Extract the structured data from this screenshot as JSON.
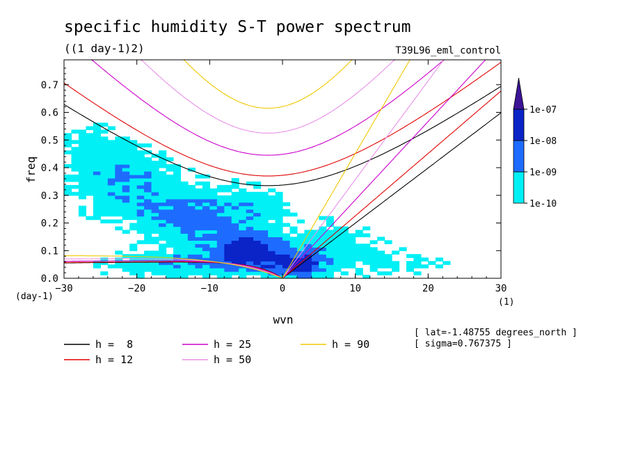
{
  "chart_data": {
    "type": "heatmap",
    "title": "specific humidity S-T power spectrum",
    "subtitle": "((1 day-1)2)",
    "run_label": "T39L96_eml_control",
    "xlabel": "wvn",
    "ylabel": "freq",
    "x_unit": "(1)",
    "y_unit": "(day-1)",
    "xlim": [
      -30,
      30
    ],
    "ylim": [
      0,
      0.79
    ],
    "x_ticks": [
      -30,
      -20,
      -10,
      0,
      10,
      20,
      30
    ],
    "x_tick_labels": [
      "−30",
      "−20",
      "−10",
      "0",
      "10",
      "20",
      "30"
    ],
    "y_ticks": [
      0,
      0.1,
      0.2,
      0.3,
      0.4,
      0.5,
      0.6,
      0.7
    ],
    "y_tick_labels": [
      "0.0",
      "0.1",
      "0.2",
      "0.3",
      "0.4",
      "0.5",
      "0.6",
      "0.7"
    ],
    "colorbar": {
      "levels": [
        "1e-10",
        "1e-09",
        "1e-08",
        "1e-07"
      ],
      "colors": [
        "#00f0f5",
        "#1e6cff",
        "#0a24c8",
        "#3c1496"
      ]
    },
    "series": [
      {
        "name": "h =  8",
        "color": "#000000",
        "equivalent_depth_m": 8
      },
      {
        "name": "h = 12",
        "color": "#e00000",
        "equivalent_depth_m": 12
      },
      {
        "name": "h = 25",
        "color": "#cc00cc",
        "equivalent_depth_m": 25
      },
      {
        "name": "h = 50",
        "color": "#e890e8",
        "equivalent_depth_m": 50
      },
      {
        "name": "h = 90",
        "color": "#f0c800",
        "equivalent_depth_m": 90
      }
    ],
    "blobs": [
      {
        "x": -5,
        "y": 0.1,
        "sx": 5,
        "sy": 0.07,
        "a": 3.2
      },
      {
        "x": -12,
        "y": 0.22,
        "sx": 8,
        "sy": 0.1,
        "a": 2.2
      },
      {
        "x": -22,
        "y": 0.36,
        "sx": 8,
        "sy": 0.14,
        "a": 1.8
      },
      {
        "x": 2,
        "y": 0.05,
        "sx": 4,
        "sy": 0.05,
        "a": 2.8
      },
      {
        "x": 7,
        "y": 0.12,
        "sx": 8,
        "sy": 0.1,
        "a": 1.3
      },
      {
        "x": 17,
        "y": 0.05,
        "sx": 8,
        "sy": 0.05,
        "a": 0.9
      },
      {
        "x": -27,
        "y": 0.5,
        "sx": 4,
        "sy": 0.07,
        "a": 1.0
      },
      {
        "x": -3,
        "y": 0.27,
        "sx": 5,
        "sy": 0.08,
        "a": 1.0
      },
      {
        "x": -15,
        "y": 0.05,
        "sx": 10,
        "sy": 0.05,
        "a": 1.8
      }
    ],
    "annotations": [
      "[ lat=-1.48755 degrees_north ]",
      "[ sigma=0.767375 ]"
    ]
  }
}
